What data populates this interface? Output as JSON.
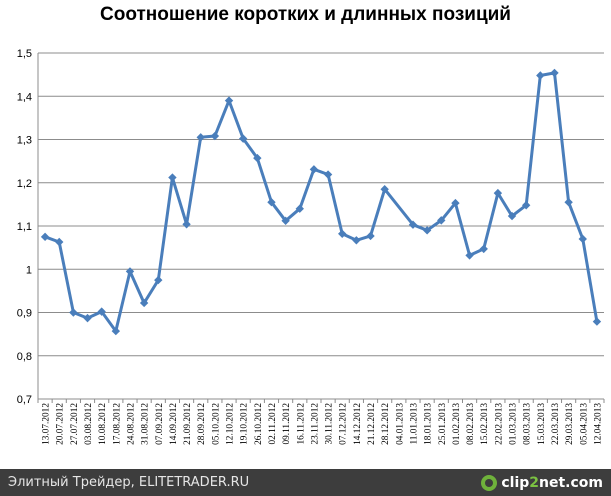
{
  "chart_data": {
    "type": "line",
    "title": "Соотношение коротких и длинных позиций",
    "xlabel": "",
    "ylabel": "",
    "ylim": [
      0.7,
      1.5
    ],
    "yticks": [
      "0,7",
      "0,8",
      "0,9",
      "1",
      "1,1",
      "1,2",
      "1,3",
      "1,4",
      "1,5"
    ],
    "grid": true,
    "legend": "none",
    "line_color": "#4a7ebb",
    "x_tick_labels": [
      "13.07.2012",
      "20.07.2012",
      "27.07.2012",
      "03.08.2012",
      "10.08.2012",
      "17.08.2012",
      "24.08.2012",
      "31.08.2012",
      "07.09.2012",
      "14.09.2012",
      "21.09.2012",
      "28.09.2012",
      "05.10.2012",
      "12.10.2012",
      "19.10.2012",
      "26.10.2012",
      "02.11.2012",
      "09.11.2012",
      "16.11.2012",
      "23.11.2012",
      "30.11.2012",
      "07.12.2012",
      "14.12.2012",
      "21.12.2012",
      "28.12.2012",
      "04.01.2013",
      "11.01.2013",
      "18.01.2013",
      "25.01.2013",
      "01.02.2013",
      "08.02.2013",
      "15.02.2013",
      "22.02.2013",
      "01.03.2013",
      "08.03.2013",
      "15.03.2013",
      "22.03.2013",
      "29.03.2013",
      "05.04.2013",
      "12.04.2013"
    ],
    "points": [
      {
        "x": "13.07.2012",
        "y": 1.075
      },
      {
        "x": "20.07.2012",
        "y": 1.063
      },
      {
        "x": "27.07.2012",
        "y": 0.9
      },
      {
        "x": "03.08.2012",
        "y": 0.887
      },
      {
        "x": "10.08.2012",
        "y": 0.902
      },
      {
        "x": "17.08.2012",
        "y": 0.857
      },
      {
        "x": "24.08.2012",
        "y": 0.995
      },
      {
        "x": "31.08.2012",
        "y": 0.922
      },
      {
        "x": "07.09.2012",
        "y": 0.975
      },
      {
        "x": "14.09.2012",
        "y": 1.212
      },
      {
        "x": "21.09.2012",
        "y": 1.104
      },
      {
        "x": "28.09.2012",
        "y": 1.305
      },
      {
        "x": "05.10.2012",
        "y": 1.308
      },
      {
        "x": "12.10.2012",
        "y": 1.39
      },
      {
        "x": "19.10.2012",
        "y": 1.302
      },
      {
        "x": "26.10.2012",
        "y": 1.257
      },
      {
        "x": "02.11.2012",
        "y": 1.155
      },
      {
        "x": "09.11.2012",
        "y": 1.112
      },
      {
        "x": "16.11.2012",
        "y": 1.14
      },
      {
        "x": "23.11.2012",
        "y": 1.231
      },
      {
        "x": "30.11.2012",
        "y": 1.219
      },
      {
        "x": "07.12.2012",
        "y": 1.082
      },
      {
        "x": "14.12.2012",
        "y": 1.067
      },
      {
        "x": "21.12.2012",
        "y": 1.077
      },
      {
        "x": "28.12.2012",
        "y": 1.185
      },
      {
        "x": "11.01.2013",
        "y": 1.103
      },
      {
        "x": "18.01.2013",
        "y": 1.09
      },
      {
        "x": "25.01.2013",
        "y": 1.113
      },
      {
        "x": "01.02.2013",
        "y": 1.153
      },
      {
        "x": "08.02.2013",
        "y": 1.032
      },
      {
        "x": "15.02.2013",
        "y": 1.047
      },
      {
        "x": "22.02.2013",
        "y": 1.176
      },
      {
        "x": "01.03.2013",
        "y": 1.123
      },
      {
        "x": "08.03.2013",
        "y": 1.148
      },
      {
        "x": "15.03.2013",
        "y": 1.448
      },
      {
        "x": "22.03.2013",
        "y": 1.454
      },
      {
        "x": "29.03.2013",
        "y": 1.155
      },
      {
        "x": "05.04.2013",
        "y": 1.07
      },
      {
        "x": "12.04.2013",
        "y": 0.879
      }
    ]
  },
  "footer": {
    "caption": "Элитный Трейдер, ELITETRADER.RU",
    "logo_main": "clip",
    "logo_accent": "2",
    "logo_tail": "net.com",
    "logo_icon": "clip2net-logo-icon"
  }
}
